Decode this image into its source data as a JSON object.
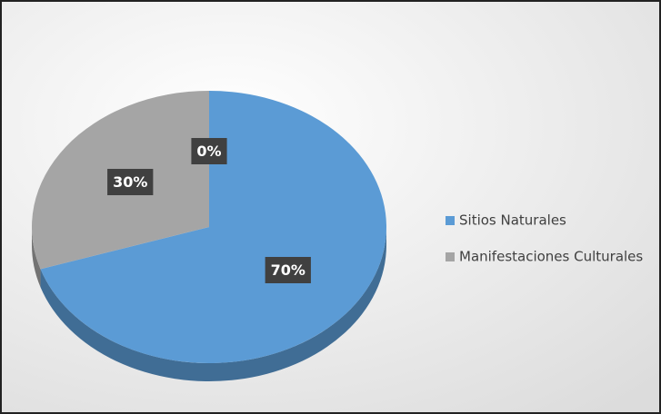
{
  "chart_data": {
    "type": "pie",
    "categories": [
      "Sitios Naturales",
      "Manifestaciones Culturales",
      null
    ],
    "values": [
      70,
      30,
      0
    ],
    "value_labels": [
      "70%",
      "30%",
      "0%"
    ],
    "colors": [
      "#5b9bd5",
      "#a5a5a5"
    ],
    "legend": "right"
  }
}
